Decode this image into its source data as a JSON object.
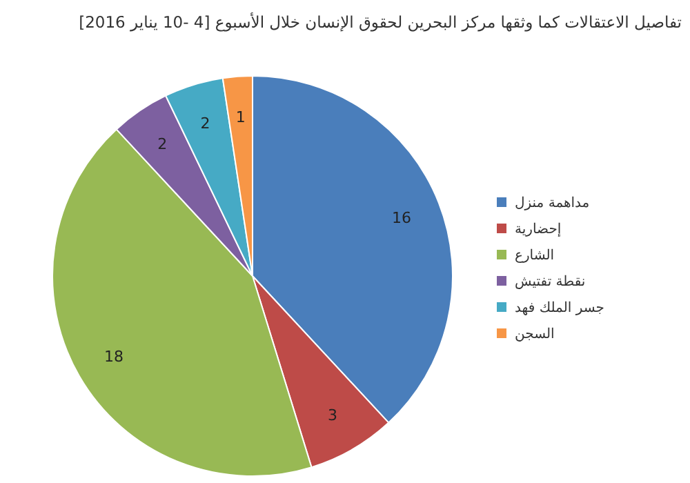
{
  "chart_data": {
    "type": "pie",
    "title": "تفاصيل الاعتقالات كما وثقها مركز البحرين لحقوق الإنسان خلال الأسبوع [4 -10 يناير 2016]",
    "categories": [
      "مداهمة منزل",
      "إحضارية",
      "الشارع",
      "نقطة تفتيش",
      "جسر الملك فهد",
      "السجن"
    ],
    "values": [
      16,
      3,
      18,
      2,
      2,
      1
    ],
    "colors": [
      "#4a7ebb",
      "#be4b48",
      "#98b954",
      "#7d60a0",
      "#46aac5",
      "#f79646"
    ],
    "data_labels": true,
    "legend": "right"
  }
}
